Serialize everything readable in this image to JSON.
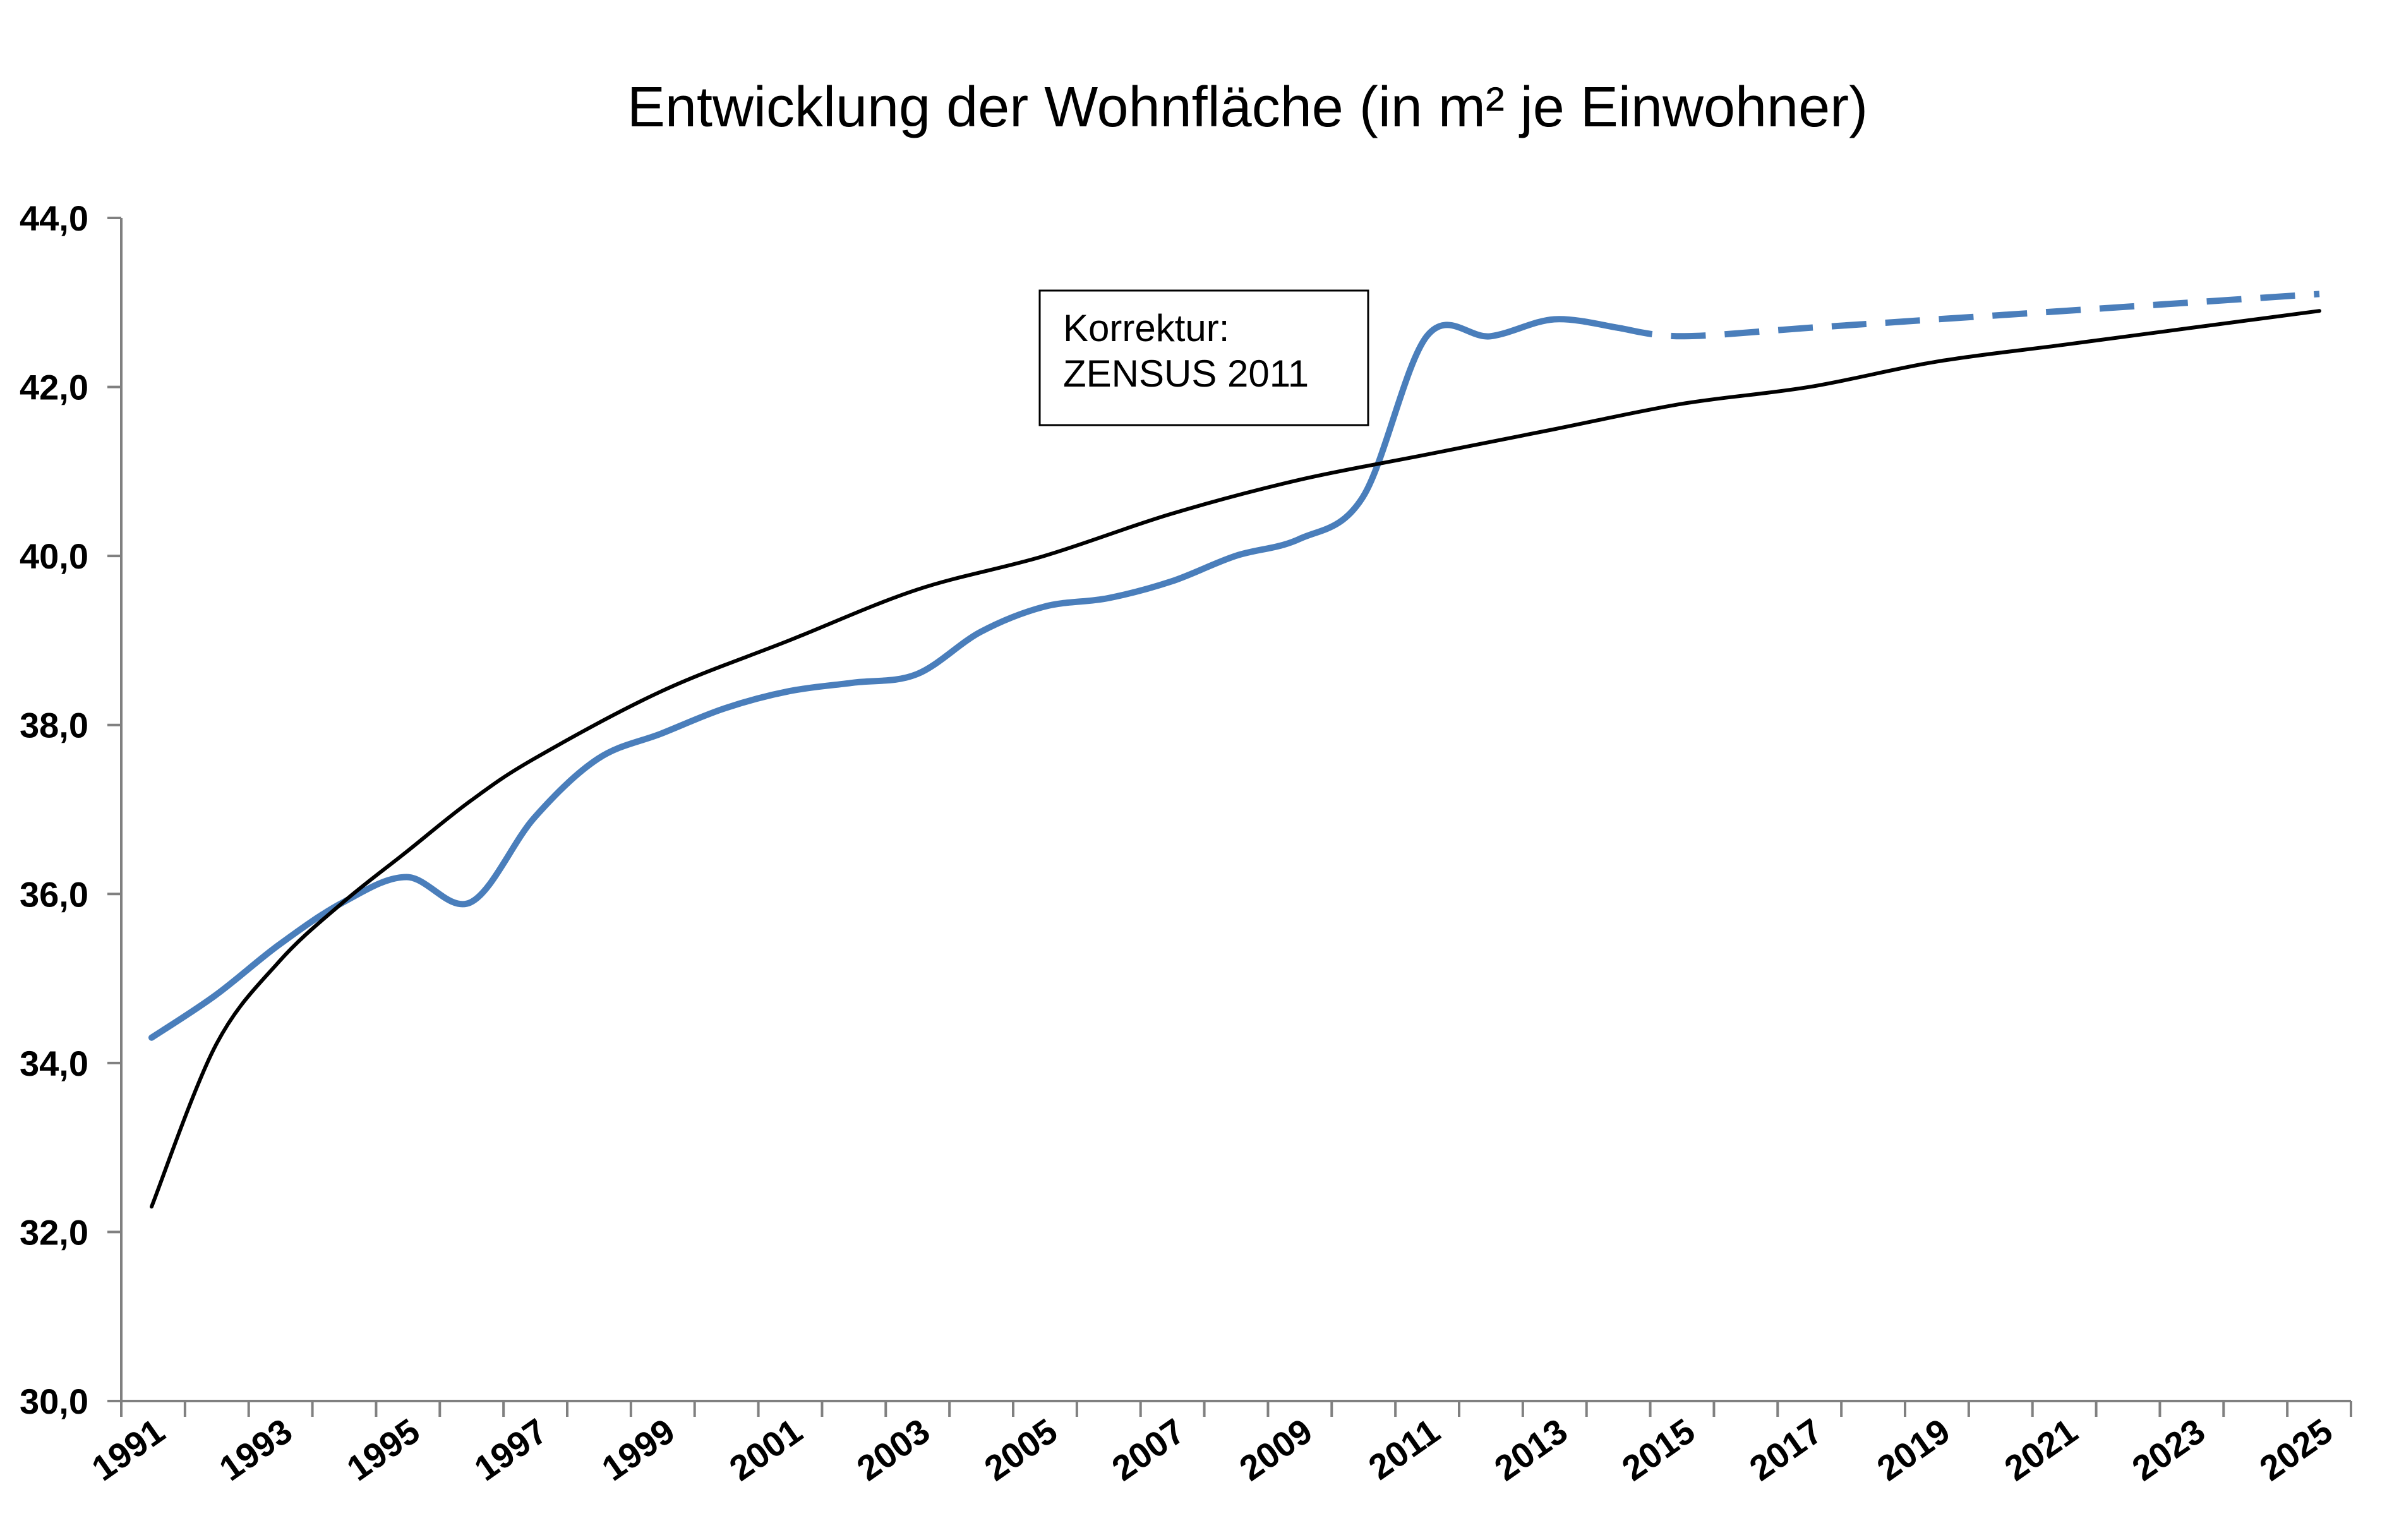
{
  "chart_data": {
    "type": "line",
    "title": "Entwicklung der Wohnfläche (in m² je Einwohner)",
    "xlabel": "",
    "ylabel": "",
    "xlim": [
      1991,
      2025
    ],
    "ylim": [
      30,
      44
    ],
    "y_ticks": [
      "30,0",
      "32,0",
      "34,0",
      "36,0",
      "38,0",
      "40,0",
      "42,0",
      "44,0"
    ],
    "x_ticks": [
      "1991",
      "1993",
      "1995",
      "1997",
      "1999",
      "2001",
      "2003",
      "2005",
      "2007",
      "2009",
      "2011",
      "2013",
      "2015",
      "2017",
      "2019",
      "2021",
      "2023",
      "2025"
    ],
    "grid": false,
    "legend": "none",
    "series": [
      {
        "color": "#4a7ebb",
        "style": "solid",
        "x": [
          1991,
          1992,
          1993,
          1994,
          1995,
          1996,
          1997,
          1998,
          1999,
          2000,
          2001,
          2002,
          2003,
          2004,
          2005,
          2006,
          2007,
          2008,
          2009,
          2010,
          2011,
          2012,
          2013,
          2014
        ],
        "y": [
          34.3,
          34.8,
          35.4,
          35.9,
          36.2,
          35.9,
          36.9,
          37.6,
          37.9,
          38.2,
          38.4,
          38.5,
          38.6,
          39.1,
          39.4,
          39.5,
          39.7,
          40.0,
          40.2,
          40.7,
          42.6,
          42.6,
          42.8,
          42.7
        ]
      },
      {
        "color": "#4a7ebb",
        "style": "dashed",
        "x": [
          2014,
          2015,
          2017,
          2019,
          2021,
          2023,
          2025
        ],
        "y": [
          42.7,
          42.6,
          42.7,
          42.8,
          42.9,
          43.0,
          43.1
        ]
      },
      {
        "color": "#000000",
        "style": "solid",
        "x": [
          1991,
          1992,
          1993,
          1994,
          1995,
          1996,
          1997,
          1999,
          2001,
          2003,
          2005,
          2007,
          2009,
          2011,
          2013,
          2015,
          2017,
          2019,
          2021,
          2023,
          2025
        ],
        "y": [
          32.3,
          34.2,
          35.2,
          35.9,
          36.5,
          37.1,
          37.6,
          38.4,
          39.0,
          39.6,
          40.0,
          40.5,
          40.9,
          41.2,
          41.5,
          41.8,
          42.0,
          42.3,
          42.5,
          42.7,
          42.9
        ]
      }
    ],
    "annotations": [
      {
        "line1": "Korrektur:",
        "line2": "ZENSUS 2011"
      }
    ]
  }
}
